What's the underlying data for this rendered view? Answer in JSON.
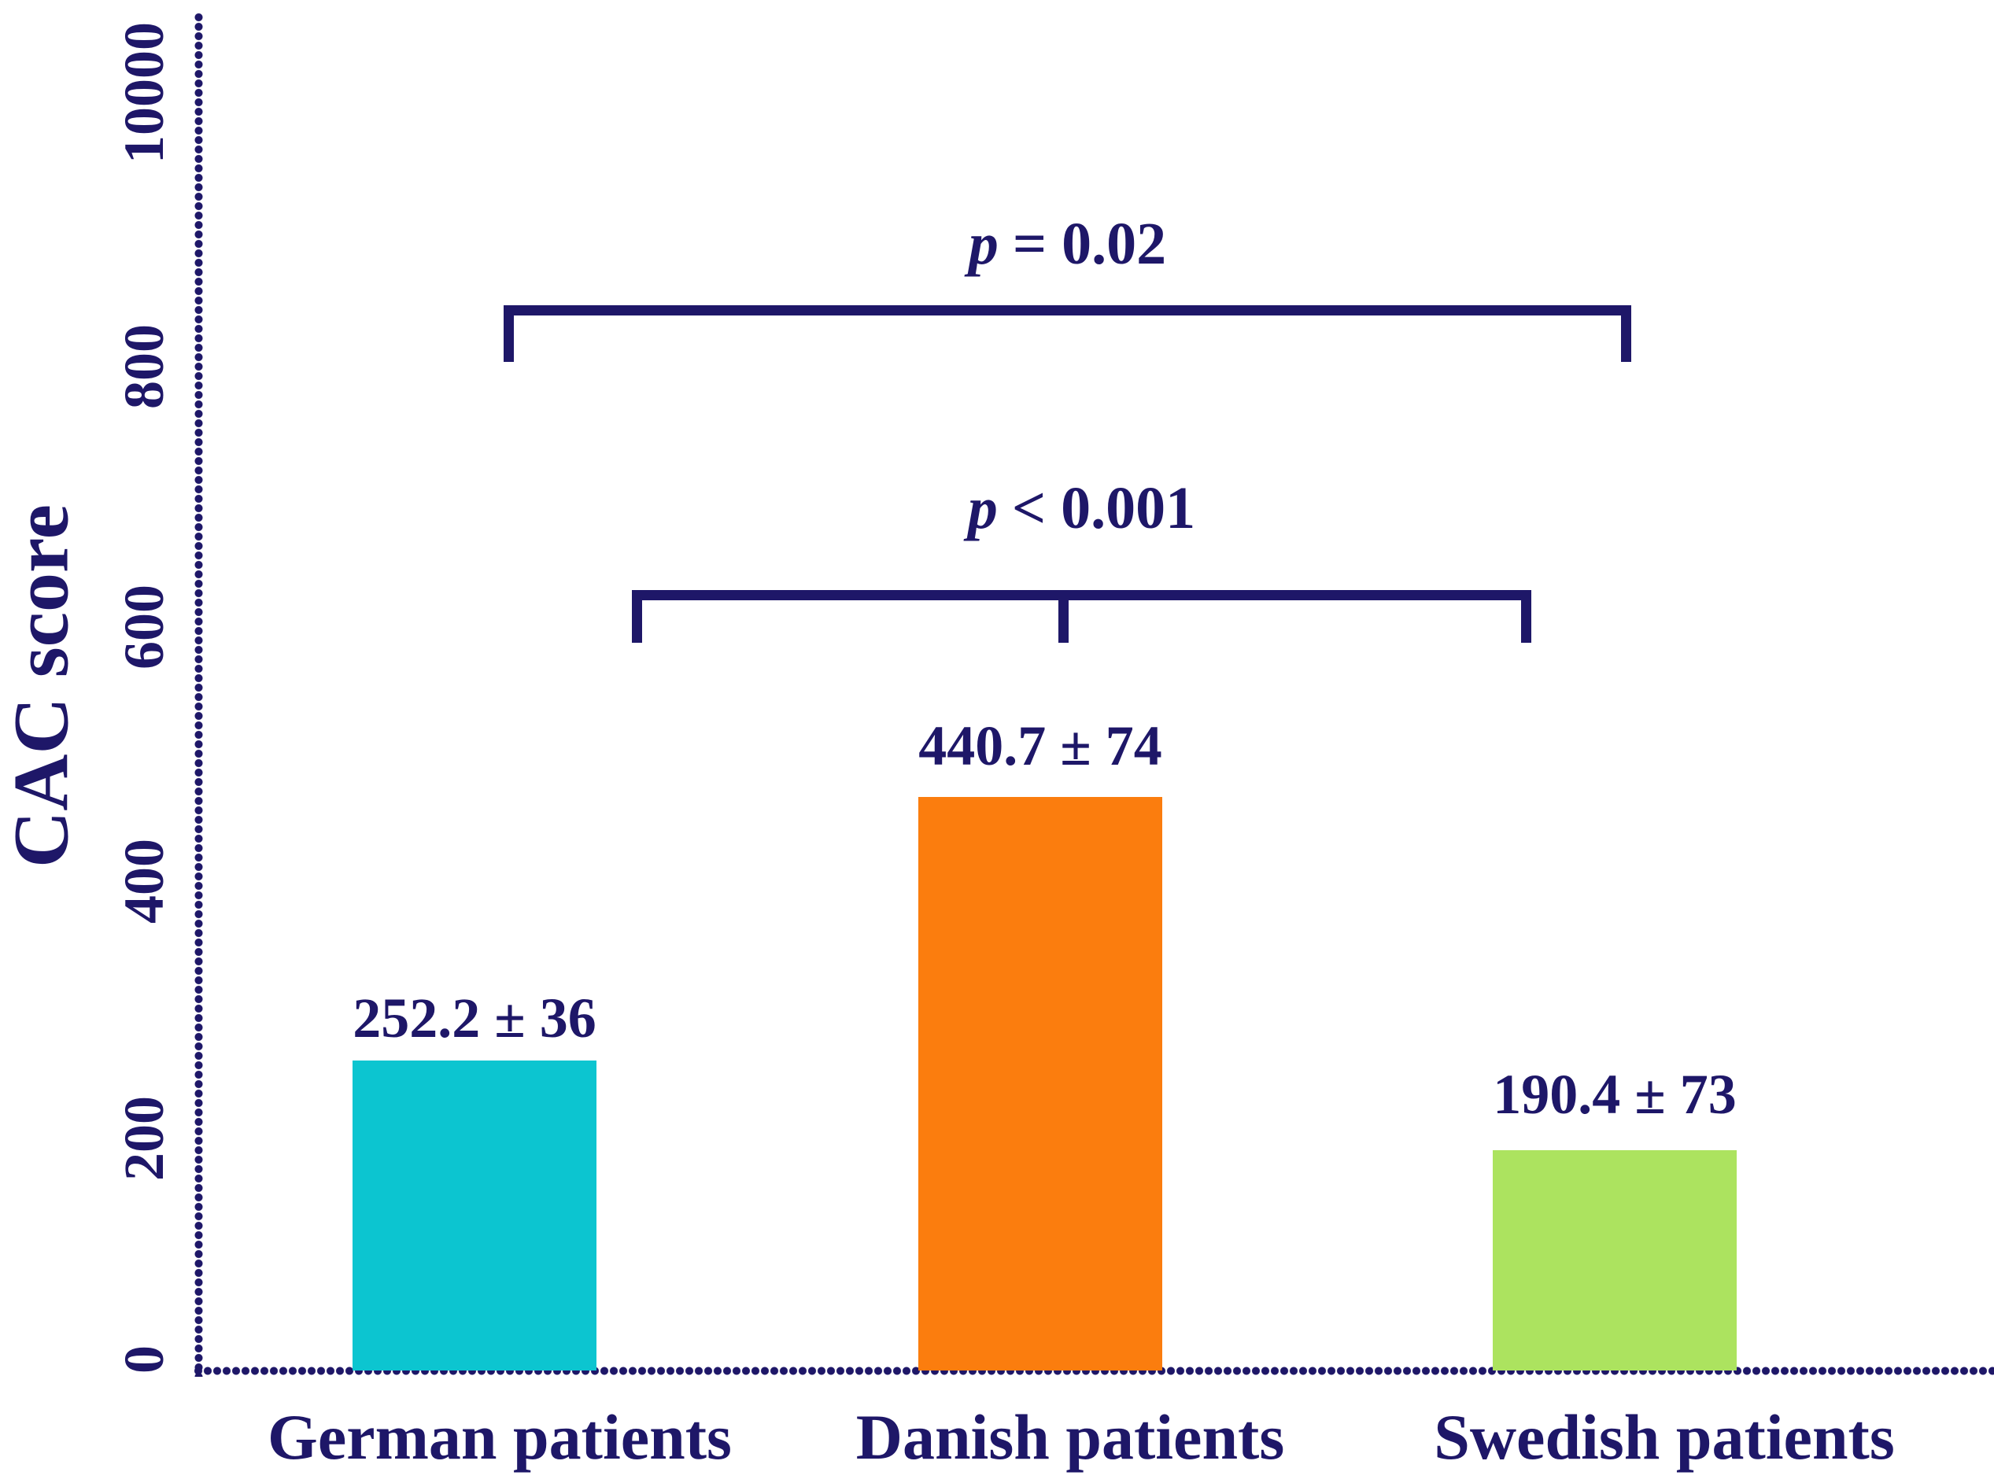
{
  "chart_data": {
    "type": "bar",
    "title": "",
    "xlabel": "",
    "ylabel": "CAC score",
    "categories": [
      "German patients",
      "Danish patients",
      "Swedish patients"
    ],
    "values": [
      252.2,
      440.7,
      190.4
    ],
    "errors": [
      36,
      74,
      73
    ],
    "bar_value_labels": [
      "252.2 ± 36",
      "440.7 ± 74",
      "190.4 ± 73"
    ],
    "bar_colors": [
      "#0cc5d0",
      "#fb7d0e",
      "#ace35f"
    ],
    "ytick_labels": [
      "10000",
      "800",
      "600",
      "400",
      "200",
      "0"
    ],
    "ylim": [
      0,
      10000
    ],
    "grid": "off",
    "legend": "none",
    "axis_color": "#1e1768",
    "axis_style": "beaded-dotted",
    "annotations": [
      {
        "text": "p = 0.02",
        "p_symbol": "p",
        "rest": "= 0.02",
        "compares": [
          "German patients",
          "Swedish patients"
        ]
      },
      {
        "text": "p < 0.001",
        "p_symbol": "p",
        "rest": "< 0.001",
        "compares": [
          "Danish patients",
          "German patients",
          "Swedish patients"
        ]
      }
    ]
  }
}
